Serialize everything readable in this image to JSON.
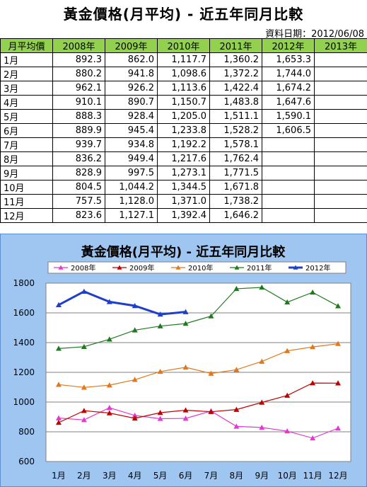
{
  "title": "黃金價格(月平均) - 近五年同月比較",
  "date_text": "資料日期：2012/06/08",
  "table": {
    "headers": [
      "月平均價",
      "2008年",
      "2009年",
      "2010年",
      "2011年",
      "2012年",
      "2013年"
    ],
    "rows": [
      [
        "1月",
        "892.3",
        "862.0",
        "1,117.7",
        "1,360.2",
        "1,653.3",
        ""
      ],
      [
        "2月",
        "880.2",
        "941.8",
        "1,098.6",
        "1,372.2",
        "1,744.0",
        ""
      ],
      [
        "3月",
        "962.1",
        "926.2",
        "1,113.6",
        "1,422.4",
        "1,674.2",
        ""
      ],
      [
        "4月",
        "910.1",
        "890.7",
        "1,150.7",
        "1,483.8",
        "1,647.6",
        ""
      ],
      [
        "5月",
        "888.3",
        "928.4",
        "1,205.0",
        "1,511.1",
        "1,590.1",
        ""
      ],
      [
        "6月",
        "889.9",
        "945.4",
        "1,233.8",
        "1,528.2",
        "1,606.5",
        ""
      ],
      [
        "7月",
        "939.7",
        "934.8",
        "1,192.2",
        "1,578.1",
        "",
        ""
      ],
      [
        "8月",
        "836.2",
        "949.4",
        "1,217.6",
        "1,762.4",
        "",
        ""
      ],
      [
        "9月",
        "828.9",
        "997.5",
        "1,273.1",
        "1,771.5",
        "",
        ""
      ],
      [
        "10月",
        "804.5",
        "1,044.2",
        "1,344.5",
        "1,671.8",
        "",
        ""
      ],
      [
        "11月",
        "757.5",
        "1,128.0",
        "1,371.0",
        "1,738.2",
        "",
        ""
      ],
      [
        "12月",
        "823.6",
        "1,127.1",
        "1,392.4",
        "1,646.2",
        "",
        ""
      ]
    ]
  },
  "chart_data": {
    "type": "line",
    "title": "黃金價格(月平均) - 近五年同月比較",
    "categories": [
      "1月",
      "2月",
      "3月",
      "4月",
      "5月",
      "6月",
      "7月",
      "8月",
      "9月",
      "10月",
      "11月",
      "12月"
    ],
    "ylim": [
      600,
      1800
    ],
    "yticks": [
      600,
      800,
      1000,
      1200,
      1400,
      1600,
      1800
    ],
    "grid": true,
    "legend_position": "top",
    "series": [
      {
        "name": "2008年",
        "color": "#e23ad0",
        "marker": "triangle",
        "values": [
          892.3,
          880.2,
          962.1,
          910.1,
          888.3,
          889.9,
          939.7,
          836.2,
          828.9,
          804.5,
          757.5,
          823.6
        ]
      },
      {
        "name": "2009年",
        "color": "#c00000",
        "marker": "triangle",
        "values": [
          862.0,
          941.8,
          926.2,
          890.7,
          928.4,
          945.4,
          934.8,
          949.4,
          997.5,
          1044.2,
          1128.0,
          1127.1
        ]
      },
      {
        "name": "2010年",
        "color": "#e0781e",
        "marker": "triangle",
        "values": [
          1117.7,
          1098.6,
          1113.6,
          1150.7,
          1205.0,
          1233.8,
          1192.2,
          1217.6,
          1273.1,
          1344.5,
          1371.0,
          1392.4
        ]
      },
      {
        "name": "2011年",
        "color": "#1f7a1f",
        "marker": "triangle",
        "values": [
          1360.2,
          1372.2,
          1422.4,
          1483.8,
          1511.1,
          1528.2,
          1578.1,
          1762.4,
          1771.5,
          1671.8,
          1738.2,
          1646.2
        ]
      },
      {
        "name": "2012年",
        "color": "#1f3fc8",
        "marker": "triangle",
        "bold": true,
        "values": [
          1653.3,
          1744.0,
          1674.2,
          1647.6,
          1590.1,
          1606.5,
          null,
          null,
          null,
          null,
          null,
          null
        ]
      }
    ]
  }
}
